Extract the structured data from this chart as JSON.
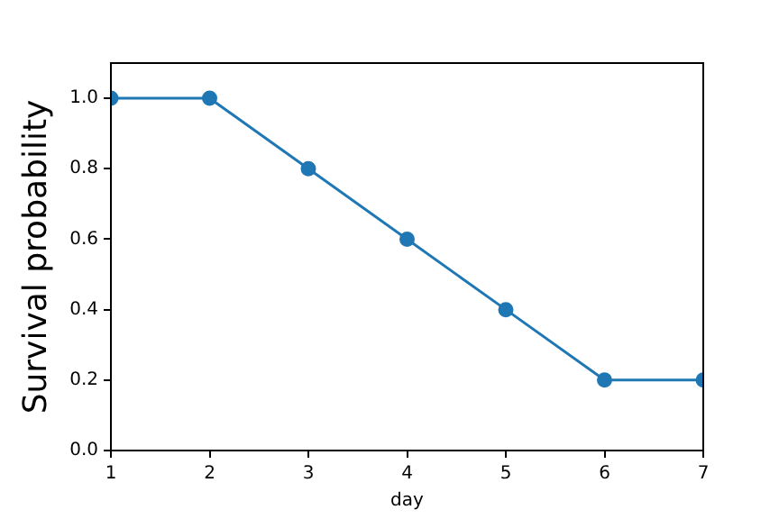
{
  "chart_data": {
    "type": "line",
    "xlabel": "day",
    "ylabel": "Survival probability",
    "x": [
      1,
      2,
      3,
      4,
      5,
      6,
      7
    ],
    "series": [
      {
        "color": "#1f77b4",
        "values": [
          1.0,
          1.0,
          0.8,
          0.6,
          0.4,
          0.2,
          0.2
        ]
      }
    ],
    "xlim": [
      1,
      7
    ],
    "xticks": [
      1,
      2,
      3,
      4,
      5,
      6,
      7
    ],
    "ylim": [
      0,
      1.1
    ],
    "yticks": [
      {
        "value": 0,
        "label": "0.0"
      },
      {
        "value": 0.2,
        "label": "0.2"
      },
      {
        "value": 0.4,
        "label": "0.4"
      },
      {
        "value": 0.6,
        "label": "0.6"
      },
      {
        "value": 0.8,
        "label": "0.8"
      },
      {
        "value": 1.0,
        "label": "1.0"
      }
    ],
    "marker": "circle",
    "line_style": "solid",
    "grid": false,
    "legend": false
  }
}
